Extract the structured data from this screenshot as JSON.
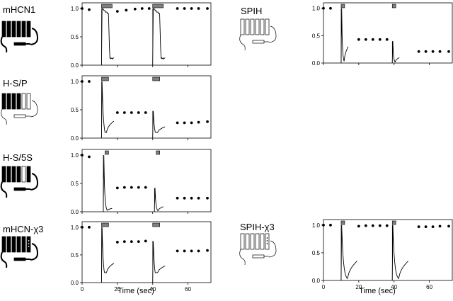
{
  "xlabel": "Time (sec)",
  "xticks": [
    0,
    20,
    40,
    60
  ],
  "yticks": [
    0.0,
    0.5,
    1.0
  ],
  "colors": {
    "trace": "#000000",
    "bar": "#808080",
    "channel_filled": "#000000",
    "channel_open": "#ffffff"
  },
  "icon": "ion-channel-topology-icon",
  "chart_data": [
    {
      "type": "scatter",
      "name": "mHCN1",
      "xlim": [
        0,
        73
      ],
      "ylim": [
        0,
        1.1
      ],
      "pulses": [
        [
          11,
          17
        ],
        [
          40,
          46
        ]
      ],
      "dots": [
        [
          0,
          1.0
        ],
        [
          4,
          0.98
        ],
        [
          20,
          0.95
        ],
        [
          25,
          0.97
        ],
        [
          30,
          0.99
        ],
        [
          34,
          1.0
        ],
        [
          38,
          1.0
        ],
        [
          54,
          1.0
        ],
        [
          58,
          1.0
        ],
        [
          62,
          1.0
        ],
        [
          66,
          1.0
        ],
        [
          71,
          1.0
        ]
      ],
      "traces": [
        {
          "t0": 11,
          "t1": 18,
          "peak": 1.0,
          "sustain": 0.9,
          "end": 0.12
        },
        {
          "t0": 40,
          "t1": 47,
          "peak": 1.0,
          "sustain": 0.9,
          "end": 0.12
        }
      ]
    },
    {
      "type": "scatter",
      "name": "H-S/P",
      "xlim": [
        0,
        73
      ],
      "ylim": [
        0,
        1.1
      ],
      "pulses": [
        [
          11,
          15
        ],
        [
          40,
          44
        ]
      ],
      "dots": [
        [
          0,
          1.0
        ],
        [
          4,
          1.0
        ],
        [
          20,
          0.45
        ],
        [
          24,
          0.45
        ],
        [
          28,
          0.45
        ],
        [
          32,
          0.45
        ],
        [
          36,
          0.45
        ],
        [
          54,
          0.27
        ],
        [
          58,
          0.27
        ],
        [
          62,
          0.27
        ],
        [
          66,
          0.28
        ],
        [
          71,
          0.29
        ]
      ],
      "traces": [
        {
          "t0": 11,
          "t1": 18,
          "peak": 1.0,
          "sustain": 0.1,
          "end": 0.3
        },
        {
          "t0": 40,
          "t1": 47,
          "peak": 0.48,
          "sustain": 0.1,
          "end": 0.2
        }
      ]
    },
    {
      "type": "scatter",
      "name": "H-S/5S",
      "xlim": [
        0,
        73
      ],
      "ylim": [
        0,
        1.1
      ],
      "pulses": [
        [
          13,
          15
        ],
        [
          42,
          44
        ]
      ],
      "dots": [
        [
          0,
          1.0
        ],
        [
          4,
          0.97
        ],
        [
          20,
          0.42
        ],
        [
          24,
          0.43
        ],
        [
          28,
          0.43
        ],
        [
          32,
          0.43
        ],
        [
          36,
          0.43
        ],
        [
          54,
          0.24
        ],
        [
          58,
          0.24
        ],
        [
          62,
          0.24
        ],
        [
          66,
          0.24
        ],
        [
          71,
          0.24
        ]
      ],
      "traces": [
        {
          "t0": 12,
          "t1": 17,
          "peak": 1.0,
          "sustain": 0.02,
          "end": 0.06
        },
        {
          "t0": 41,
          "t1": 46,
          "peak": 0.42,
          "sustain": 0.02,
          "end": 0.09
        }
      ]
    },
    {
      "type": "scatter",
      "name": "mHCN-χ3",
      "xlim": [
        0,
        73
      ],
      "ylim": [
        0,
        1.1
      ],
      "pulses": [
        [
          11,
          15
        ],
        [
          40,
          44
        ]
      ],
      "dots": [
        [
          0,
          1.0
        ],
        [
          4,
          1.0
        ],
        [
          20,
          0.73
        ],
        [
          24,
          0.74
        ],
        [
          28,
          0.74
        ],
        [
          32,
          0.74
        ],
        [
          36,
          0.75
        ],
        [
          54,
          0.57
        ],
        [
          58,
          0.57
        ],
        [
          62,
          0.57
        ],
        [
          66,
          0.57
        ],
        [
          71,
          0.58
        ]
      ],
      "traces": [
        {
          "t0": 11,
          "t1": 18,
          "peak": 1.0,
          "sustain": 0.18,
          "end": 0.35
        },
        {
          "t0": 40,
          "t1": 47,
          "peak": 0.75,
          "sustain": 0.18,
          "end": 0.3
        }
      ]
    },
    {
      "type": "scatter",
      "name": "SPIH",
      "xlim": [
        0,
        73
      ],
      "ylim": [
        0,
        1.1
      ],
      "pulses": [
        [
          10,
          12
        ],
        [
          39,
          41
        ]
      ],
      "dots": [
        [
          0,
          1.0
        ],
        [
          4,
          1.0
        ],
        [
          20,
          0.43
        ],
        [
          24,
          0.43
        ],
        [
          28,
          0.43
        ],
        [
          32,
          0.43
        ],
        [
          36,
          0.43
        ],
        [
          54,
          0.21
        ],
        [
          58,
          0.21
        ],
        [
          62,
          0.21
        ],
        [
          66,
          0.21
        ],
        [
          71,
          0.21
        ]
      ],
      "traces": [
        {
          "t0": 10,
          "t1": 14,
          "peak": 1.0,
          "sustain": 0.02,
          "end": 0.3
        },
        {
          "t0": 39,
          "t1": 43,
          "peak": 0.4,
          "sustain": 0.02,
          "end": 0.1
        }
      ]
    },
    {
      "type": "scatter",
      "name": "SPIH-χ3",
      "xlim": [
        0,
        73
      ],
      "ylim": [
        0,
        1.1
      ],
      "pulses": [
        [
          10,
          12
        ],
        [
          39,
          41
        ]
      ],
      "dots": [
        [
          0,
          1.0
        ],
        [
          4,
          1.0
        ],
        [
          20,
          0.98
        ],
        [
          24,
          0.99
        ],
        [
          28,
          0.99
        ],
        [
          32,
          0.99
        ],
        [
          36,
          0.99
        ],
        [
          54,
          0.97
        ],
        [
          58,
          0.97
        ],
        [
          62,
          0.97
        ],
        [
          66,
          0.98
        ],
        [
          71,
          0.98
        ]
      ],
      "traces": [
        {
          "t0": 10,
          "t1": 19,
          "peak": 1.0,
          "sustain": 0.02,
          "end": 0.35
        },
        {
          "t0": 39,
          "t1": 48,
          "peak": 1.0,
          "sustain": 0.02,
          "end": 0.35
        }
      ]
    }
  ]
}
